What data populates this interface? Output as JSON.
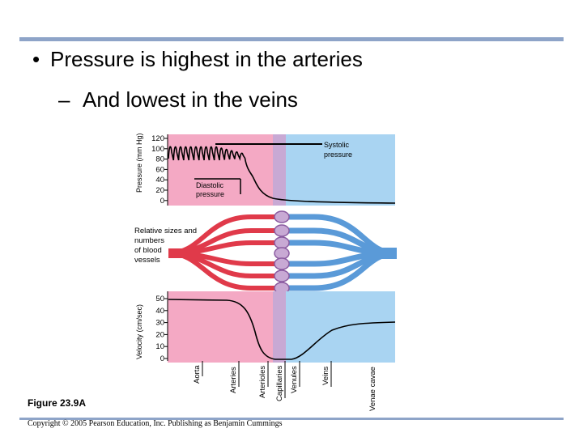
{
  "slide": {
    "bullet_main": "Pressure is highest in the arteries",
    "bullet_sub": "And lowest in the veins",
    "figure_caption": "Figure 23.9A",
    "copyright": "Copyright © 2005 Pearson Education, Inc. Publishing as Benjamin Cummings"
  },
  "pressure_panel": {
    "ylabel": "Pressure (mm Hg)",
    "ticks": [
      "120",
      "100",
      "80",
      "60",
      "40",
      "20",
      "0"
    ],
    "systolic_label": [
      "Systolic",
      "pressure"
    ],
    "diastolic_label": [
      "Diastolic",
      "pressure"
    ]
  },
  "vessel_panel": {
    "label": [
      "Relative sizes and",
      "numbers",
      "of blood",
      "vessels"
    ]
  },
  "velocity_panel": {
    "ylabel": "Velocity (cm/sec)",
    "ticks": [
      "50",
      "40",
      "30",
      "20",
      "10",
      "0"
    ],
    "vessels": [
      "Aorta",
      "Arteries",
      "Arterioles",
      "Capillaries",
      "Venules",
      "Veins",
      "Venae cavae"
    ]
  },
  "colors": {
    "arterial": "#f4a9c4",
    "venous": "#a9d4f2",
    "capillary": "#c8a9d4",
    "artery_vessel": "#e03a4a",
    "vein_vessel": "#5a9ad8",
    "rule": "#8ea4c8"
  }
}
